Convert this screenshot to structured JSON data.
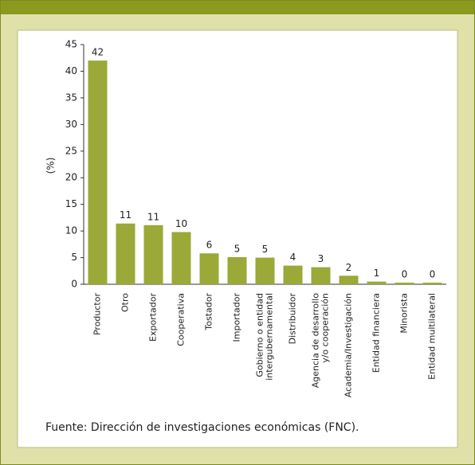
{
  "chart_data": {
    "type": "bar",
    "y_label": "(%)",
    "source": "Fuente: Dirección de investigaciones económicas (FNC).",
    "categories": [
      "Productor",
      "Otro",
      "Exportador",
      "Cooperativa",
      "Tostador",
      "Importador",
      "Gobierno o entidad\nintergubernamental",
      "Distribuidor",
      "Agencia de desarrollo\ny/o cooperación",
      "Academia/Investigación",
      "Entidad financiera",
      "Minorista",
      "Entidad multilateral"
    ],
    "values": [
      42,
      11.4,
      11.1,
      9.8,
      5.8,
      5.1,
      5.0,
      3.5,
      3.2,
      1.6,
      0.5,
      0.3,
      0.3
    ],
    "value_labels": [
      "42",
      "11",
      "11",
      "10",
      "6",
      "5",
      "5",
      "4",
      "3",
      "2",
      "1",
      "0",
      "0"
    ],
    "color": "#9aa937",
    "ylim": [
      0,
      45
    ],
    "yticks": [
      0,
      5,
      10,
      15,
      20,
      25,
      30,
      35,
      40,
      45
    ],
    "grid": false
  }
}
